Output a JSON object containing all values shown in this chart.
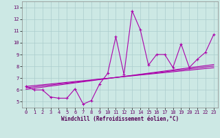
{
  "xlabel": "Windchill (Refroidissement éolien,°C)",
  "bg_color": "#cce8e4",
  "line_color": "#aa00aa",
  "grid_color": "#aacccc",
  "x_ticks": [
    0,
    1,
    2,
    3,
    4,
    5,
    6,
    7,
    8,
    9,
    10,
    11,
    12,
    13,
    14,
    15,
    16,
    17,
    18,
    19,
    20,
    21,
    22,
    23
  ],
  "y_ticks": [
    5,
    6,
    7,
    8,
    9,
    10,
    11,
    12,
    13
  ],
  "ylim": [
    4.5,
    13.5
  ],
  "xlim": [
    -0.5,
    23.5
  ],
  "series1_x": [
    0,
    1,
    2,
    3,
    4,
    5,
    6,
    7,
    8,
    9,
    10,
    11,
    12,
    13,
    14,
    15,
    16,
    17,
    18,
    19,
    20,
    21,
    22,
    23
  ],
  "series1_y": [
    6.3,
    6.0,
    6.0,
    5.4,
    5.3,
    5.3,
    6.1,
    4.8,
    5.1,
    6.5,
    7.4,
    10.5,
    7.3,
    12.7,
    11.1,
    8.1,
    9.0,
    9.0,
    7.9,
    9.9,
    7.9,
    8.6,
    9.2,
    10.7
  ],
  "regressions": [
    {
      "x": [
        0,
        23
      ],
      "y": [
        6.05,
        8.15
      ]
    },
    {
      "x": [
        0,
        23
      ],
      "y": [
        6.18,
        8.02
      ]
    },
    {
      "x": [
        0,
        23
      ],
      "y": [
        6.3,
        7.88
      ]
    }
  ],
  "marker": "+",
  "markersize": 3.5,
  "markeredgewidth": 0.8,
  "linewidth": 0.8
}
